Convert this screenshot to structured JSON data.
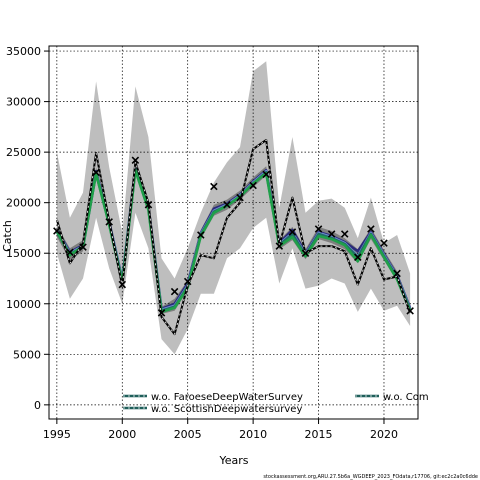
{
  "chart_data": {
    "type": "line",
    "title": "",
    "xlabel": "Years",
    "ylabel": "Catch",
    "xlim": [
      1994.4,
      2022.6
    ],
    "ylim": [
      -1400,
      35500
    ],
    "x_ticks": [
      1995,
      2000,
      2005,
      2010,
      2015,
      2020
    ],
    "y_ticks": [
      0,
      5000,
      10000,
      15000,
      20000,
      25000,
      30000,
      35000
    ],
    "grid": true,
    "x": [
      1995,
      1996,
      1997,
      1998,
      1999,
      2000,
      2001,
      2002,
      2003,
      2004,
      2005,
      2006,
      2007,
      2008,
      2009,
      2010,
      2011,
      2012,
      2013,
      2014,
      2015,
      2016,
      2017,
      2018,
      2019,
      2020,
      2021,
      2022
    ],
    "band_outer": {
      "color": "#bebebe",
      "upper": [
        25000,
        18500,
        21000,
        32000,
        23500,
        17000,
        31500,
        26500,
        14500,
        12500,
        15500,
        19000,
        22000,
        24000,
        25500,
        33000,
        34000,
        19500,
        26500,
        19000,
        20200,
        20400,
        19500,
        16500,
        20500,
        16000,
        16800,
        13000
      ],
      "lower": [
        15000,
        10500,
        12500,
        18500,
        13500,
        10000,
        19000,
        15500,
        6500,
        5000,
        7500,
        11000,
        11000,
        14500,
        15500,
        17500,
        18500,
        12000,
        15500,
        11500,
        11800,
        12500,
        12000,
        9200,
        11500,
        9300,
        9800,
        7800
      ]
    },
    "band_inner": {
      "color": "#7f7f7f",
      "upper": [
        17700,
        15500,
        16300,
        23500,
        18500,
        12800,
        24000,
        20000,
        9700,
        10500,
        12300,
        17300,
        19800,
        20300,
        21200,
        22500,
        23600,
        16300,
        17600,
        15400,
        17600,
        17200,
        16500,
        15400,
        17500,
        15300,
        13200,
        9900
      ],
      "lower": [
        16600,
        14300,
        15200,
        22300,
        17400,
        11700,
        22800,
        18900,
        9000,
        9300,
        11300,
        16400,
        18700,
        19300,
        20300,
        21500,
        22700,
        15400,
        16300,
        14400,
        16400,
        16000,
        15400,
        14000,
        16400,
        14300,
        12200,
        9000
      ]
    },
    "series": [
      {
        "name": "w.o. FaroeseDeepWaterSurvey",
        "color": "#6f8ccf",
        "values": [
          17200,
          15000,
          15700,
          23000,
          18000,
          12300,
          23400,
          19500,
          9400,
          9800,
          11800,
          16900,
          19200,
          19800,
          20700,
          22000,
          23100,
          15900,
          17000,
          14900,
          17000,
          16600,
          16000,
          14700,
          17000,
          14800,
          12700,
          9500
        ]
      },
      {
        "name": "w.o. ScottishDeepwatersurvey",
        "color": "#1f6b66",
        "values": [
          17100,
          14900,
          15600,
          22900,
          17900,
          12200,
          23300,
          19400,
          9300,
          9700,
          11700,
          16800,
          19100,
          19700,
          20600,
          21900,
          23000,
          15800,
          16900,
          14800,
          16900,
          16500,
          15900,
          14600,
          16900,
          14700,
          12600,
          9400
        ]
      },
      {
        "name": "w.o. Com",
        "color": "#1fa04a",
        "values": [
          17200,
          14800,
          15700,
          22900,
          17800,
          12100,
          23200,
          19300,
          9200,
          9600,
          11600,
          16700,
          19000,
          19700,
          20600,
          21900,
          22900,
          15700,
          16600,
          14700,
          16700,
          16400,
          15800,
          14200,
          16800,
          14600,
          12400,
          9300
        ]
      },
      {
        "name": "",
        "color": "#2a2a7a",
        "values": [
          17300,
          15100,
          15800,
          23100,
          18100,
          12400,
          23500,
          19600,
          9500,
          10000,
          12000,
          17000,
          19400,
          19900,
          20800,
          22100,
          23200,
          16000,
          17300,
          15000,
          17100,
          16700,
          16100,
          15200,
          17100,
          14900,
          12800,
          9600
        ]
      },
      {
        "name": "",
        "color": "#000000",
        "values": [
          18300,
          14000,
          16000,
          24900,
          18200,
          11700,
          24000,
          20000,
          8700,
          7000,
          11800,
          14800,
          14500,
          18500,
          20000,
          25300,
          26200,
          15800,
          20500,
          15000,
          15700,
          15700,
          15200,
          11900,
          15500,
          12400,
          12700,
          9100
        ]
      }
    ],
    "observed": {
      "color": "#000000",
      "values": [
        17200,
        15100,
        15600,
        23000,
        18100,
        11900,
        24200,
        19800,
        9100,
        11200,
        12200,
        16800,
        21600,
        19800,
        20500,
        21700,
        22800,
        15700,
        17100,
        15000,
        17400,
        16900,
        16900,
        14600,
        17400,
        16000,
        13000,
        9300
      ]
    },
    "legend": {
      "placement": "bottom-inside",
      "entries": [
        "w.o. FaroeseDeepWaterSurvey",
        "w.o. ScottishDeepwatersurvey",
        "w.o. Com"
      ]
    },
    "credit": "stockassessment.org,ARU.27.5b6a_WGDEEP_2023_FOdata,r17706, git:ec2c2a0c6dde"
  }
}
